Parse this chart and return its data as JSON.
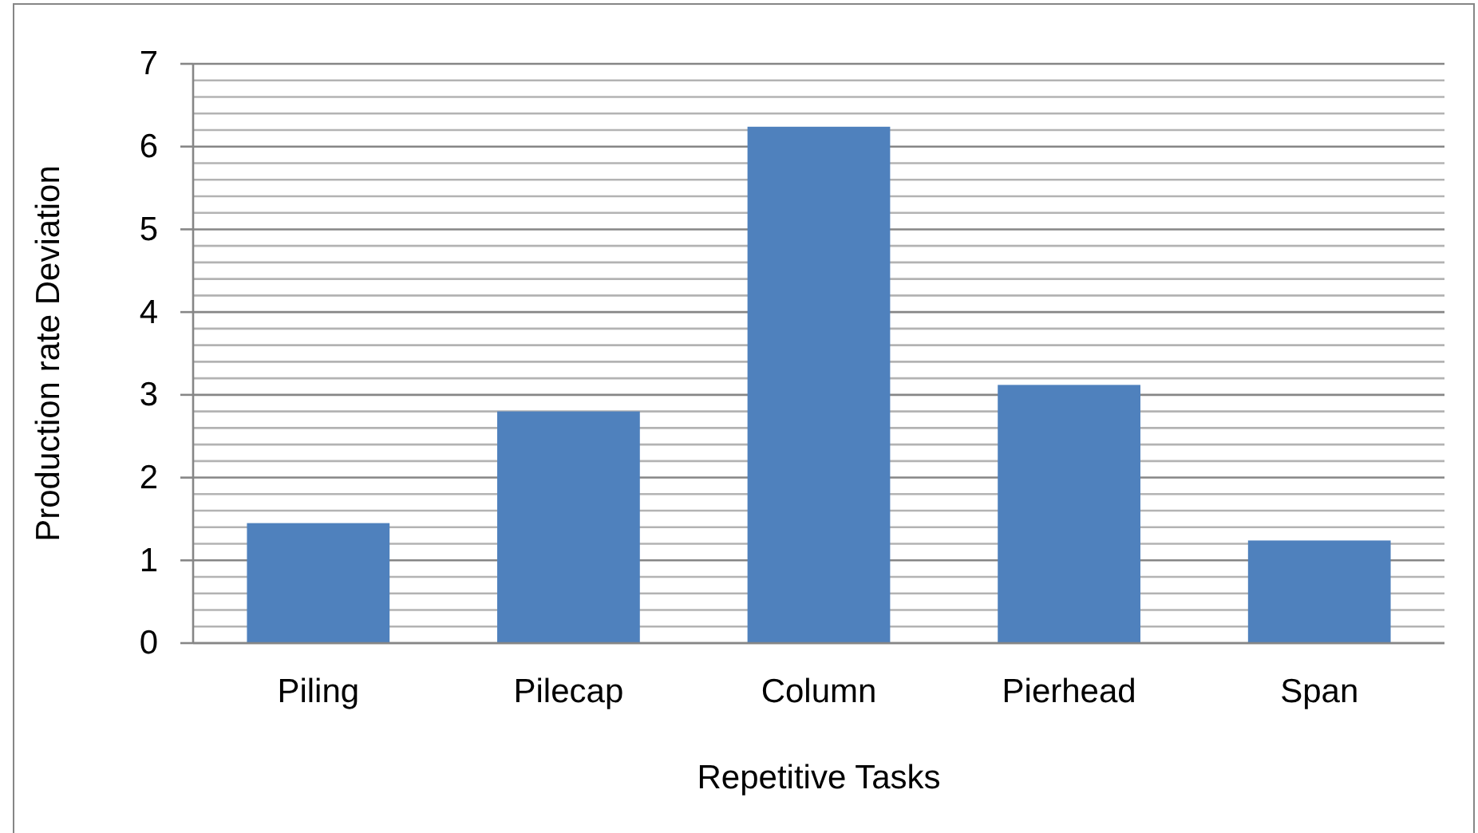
{
  "chart_data": {
    "type": "bar",
    "xlabel": "Repetitive Tasks",
    "ylabel": "Production rate Deviation",
    "categories": [
      "Piling",
      "Pilecap",
      "Column",
      "Pierhead",
      "Span"
    ],
    "values": [
      1.45,
      2.8,
      6.24,
      3.12,
      1.24
    ],
    "color": "#4f81bd",
    "ylim": [
      0,
      7
    ],
    "yticks": [
      0,
      {
        "value": 0.2,
        "label": null
      },
      {
        "value": 0.4,
        "label": null
      },
      {
        "value": 0.6,
        "label": null
      },
      {
        "value": 0.8,
        "label": null
      },
      1,
      {
        "value": 1.2,
        "label": null
      },
      {
        "value": 1.4,
        "label": null
      },
      {
        "value": 1.6,
        "label": null
      },
      {
        "value": 1.8,
        "label": null
      },
      2,
      {
        "value": 2.2,
        "label": null
      },
      {
        "value": 2.4,
        "label": null
      },
      {
        "value": 2.6,
        "label": null
      },
      {
        "value": 2.8,
        "label": null
      },
      3,
      {
        "value": 3.2,
        "label": null
      },
      {
        "value": 3.4,
        "label": null
      },
      {
        "value": 3.6,
        "label": null
      },
      {
        "value": 3.8,
        "label": null
      },
      4,
      {
        "value": 4.2,
        "label": null
      },
      {
        "value": 4.4,
        "label": null
      },
      {
        "value": 4.6,
        "label": null
      },
      {
        "value": 4.8,
        "label": null
      },
      5,
      {
        "value": 5.2,
        "label": null
      },
      {
        "value": 5.4,
        "label": null
      },
      {
        "value": 5.6,
        "label": null
      },
      {
        "value": 5.8,
        "label": null
      },
      6,
      {
        "value": 6.2,
        "label": null
      },
      {
        "value": 6.4,
        "label": null
      },
      {
        "value": 6.6,
        "label": null
      },
      {
        "value": 6.8,
        "label": null
      },
      7
    ],
    "grid": "y"
  }
}
